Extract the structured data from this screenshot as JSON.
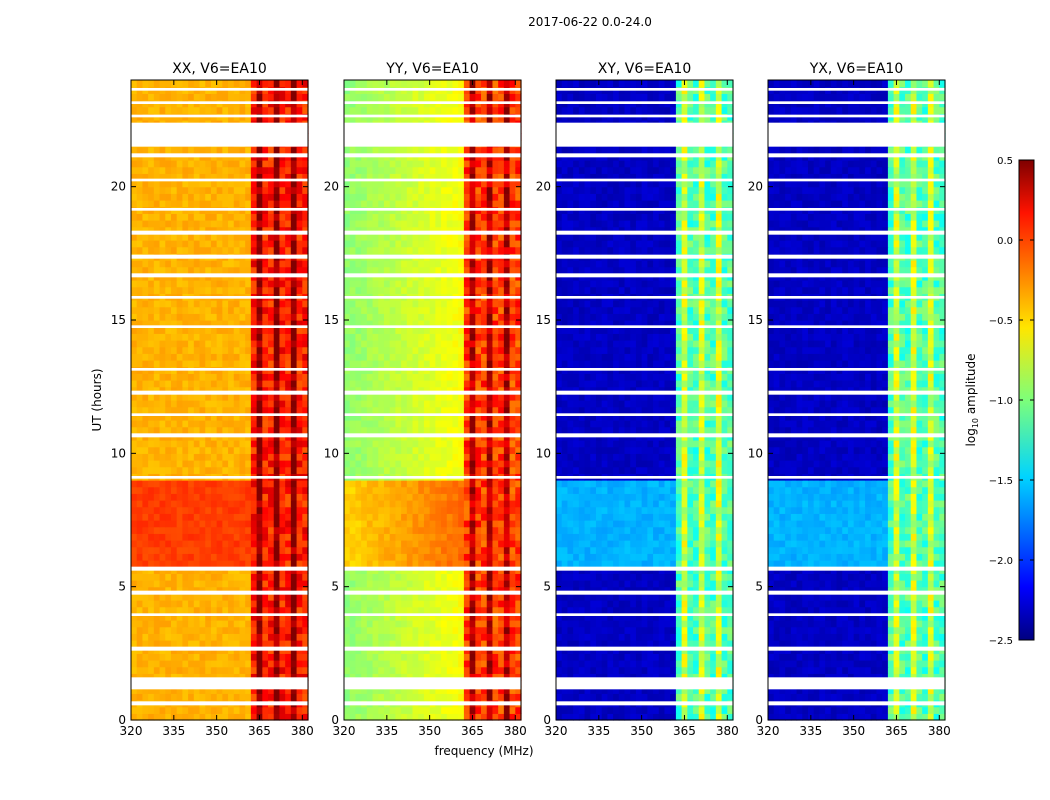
{
  "figure": {
    "suptitle": "2017-06-22 0.0-24.0",
    "xlabel": "frequency (MHz)",
    "ylabel": "UT (hours)"
  },
  "colorbar": {
    "label": "log$_{10}$ amplitude",
    "label_main": "log",
    "label_sub": "10",
    "label_rest": " amplitude",
    "min": -2.5,
    "max": 0.5,
    "colormap": "jet",
    "ticks": [
      {
        "value": 0.5,
        "label": "0.5"
      },
      {
        "value": 0.0,
        "label": "0.0"
      },
      {
        "value": -0.5,
        "label": "−0.5"
      },
      {
        "value": -1.0,
        "label": "−1.0"
      },
      {
        "value": -1.5,
        "label": "−1.5"
      },
      {
        "value": -2.0,
        "label": "−2.0"
      },
      {
        "value": -2.5,
        "label": "−2.5"
      }
    ]
  },
  "chart_data": {
    "type": "heatmap",
    "colormap": "jet",
    "zlabel": "log10 amplitude",
    "zlim": [
      -2.5,
      0.5
    ],
    "xlim": [
      320,
      382
    ],
    "ylim": [
      0,
      24
    ],
    "xticks": [
      320,
      335,
      350,
      365,
      380
    ],
    "yticks": [
      0,
      5,
      10,
      15,
      20
    ],
    "xlabel": "frequency (MHz)",
    "ylabel": "UT (hours)",
    "flagged_time_ranges": [
      [
        21.5,
        22.4
      ],
      [
        1.15,
        1.6
      ],
      [
        0.55,
        0.7
      ],
      [
        2.6,
        2.75
      ],
      [
        3.9,
        4.0
      ],
      [
        4.7,
        4.85
      ],
      [
        5.6,
        5.75
      ],
      [
        9.05,
        9.15
      ],
      [
        10.6,
        10.75
      ],
      [
        11.4,
        11.5
      ],
      [
        12.2,
        12.35
      ],
      [
        13.1,
        13.2
      ],
      [
        14.7,
        14.8
      ],
      [
        15.8,
        15.9
      ],
      [
        16.6,
        16.75
      ],
      [
        17.3,
        17.45
      ],
      [
        18.2,
        18.35
      ],
      [
        19.1,
        19.2
      ],
      [
        20.2,
        20.3
      ],
      [
        21.1,
        21.25
      ],
      [
        22.6,
        22.7
      ],
      [
        23.1,
        23.2
      ],
      [
        23.6,
        23.7
      ]
    ],
    "panels": [
      {
        "title": "XX, V6=EA10",
        "baseline_level": -0.4,
        "rfi_band_level": 0.3,
        "high_level_time_range": [
          5.7,
          9.0
        ],
        "high_level": -0.05,
        "rfi_band_mhz": [
          363,
          382
        ]
      },
      {
        "title": "YY, V6=EA10",
        "baseline_level": -0.6,
        "rfi_band_level": 0.2,
        "high_level_time_range": [
          5.7,
          9.0
        ],
        "high_level": -0.15,
        "rfi_band_mhz": [
          363,
          382
        ]
      },
      {
        "title": "XY, V6=EA10",
        "baseline_level": -2.3,
        "rfi_band_level": -0.9,
        "high_level_time_range": [
          5.7,
          9.0
        ],
        "high_level": -1.6,
        "rfi_band_mhz": [
          363,
          382
        ]
      },
      {
        "title": "YX, V6=EA10",
        "baseline_level": -2.3,
        "rfi_band_level": -0.9,
        "high_level_time_range": [
          5.7,
          9.0
        ],
        "high_level": -1.6,
        "rfi_band_mhz": [
          363,
          382
        ]
      }
    ]
  }
}
